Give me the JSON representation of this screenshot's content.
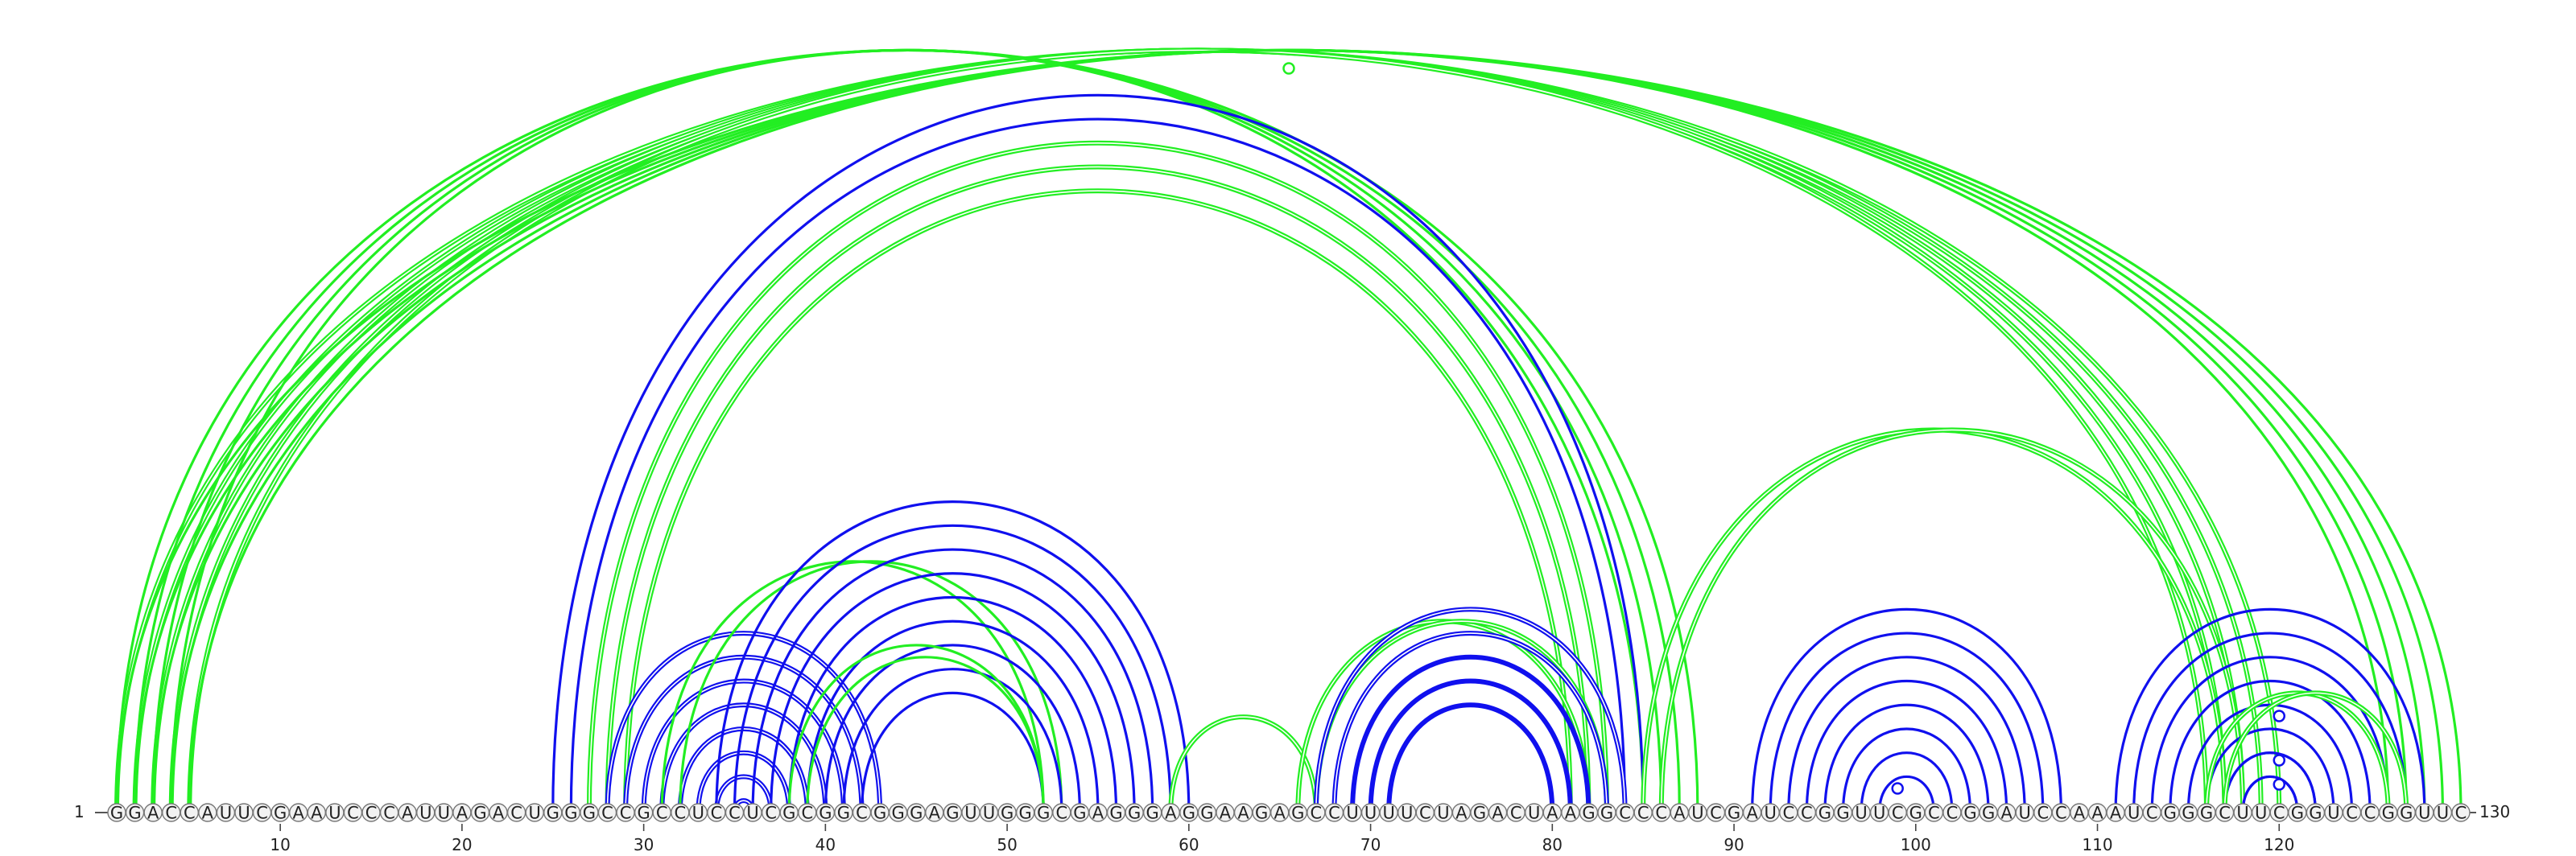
{
  "sequence": "GGACCAUUCGAAUCCCAUUAGACUGGGCCGCCUCCUCGCGGCGGGAGUUGGGCGAGGGAGGAAGAGCCUUUUCUAGACUAAGGCCCAUCGAUCCGGUUCGCCGGAUCCAAAUCGGGCUUCGGUCCGGUUC",
  "start_label": "1",
  "end_label": "130",
  "tick_labels": [
    "10",
    "20",
    "30",
    "40",
    "50",
    "60",
    "70",
    "80",
    "90",
    "100",
    "110",
    "120"
  ],
  "colors": {
    "green": "#22ee22",
    "blue": "#1010ee",
    "backbone": "#aaaaaa",
    "nucleotide_fill": "#f2f2f2",
    "nucleotide_stroke": "#777777"
  },
  "arc_groups": [
    {
      "color": "green",
      "weight": "double",
      "start": 1,
      "end": 120,
      "count": 5,
      "inner_step": 1,
      "outer_step": -1
    },
    {
      "color": "green",
      "weight": "single",
      "start": 126,
      "end": 130,
      "count": 5,
      "paired_from": 1
    },
    {
      "color": "green",
      "weight": "single",
      "start": 84,
      "end": 88,
      "count": 4,
      "paired_from": 1
    },
    {
      "color": "blue",
      "weight": "single",
      "start": 25,
      "end": 85,
      "count": 3,
      "inner_step": 1,
      "outer_step": -1
    },
    {
      "color": "green",
      "weight": "double",
      "start": 27,
      "end": 83,
      "count": 3,
      "inner_step": 1,
      "outer_step": -1
    },
    {
      "color": "blue",
      "weight": "double",
      "start": 28,
      "end": 43,
      "count": 8,
      "inner_step": 1,
      "outer_step": -1
    },
    {
      "color": "green",
      "weight": "single",
      "start": 31,
      "end": 52,
      "count": 2,
      "inner_step": 1,
      "outer_step": 1
    },
    {
      "color": "blue",
      "weight": "single",
      "start": 34,
      "end": 60,
      "count": 9,
      "inner_step": 1,
      "outer_step": -1
    },
    {
      "color": "green",
      "weight": "single",
      "start": 38,
      "end": 52,
      "count": 2,
      "inner_step": 1,
      "outer_step": 0
    },
    {
      "color": "green",
      "weight": "double",
      "start": 59,
      "end": 67,
      "count": 1,
      "inner_step": 1,
      "outer_step": -1
    },
    {
      "color": "green",
      "weight": "double",
      "start": 66,
      "end": 82,
      "count": 2,
      "inner_step": 1,
      "outer_step": 1
    },
    {
      "color": "blue",
      "weight": "double",
      "start": 67,
      "end": 84,
      "count": 5,
      "inner_step": 1,
      "outer_step": -1
    },
    {
      "color": "blue",
      "weight": "single",
      "start": 69,
      "end": 82,
      "count": 3,
      "inner_step": 1,
      "outer_step": -1
    },
    {
      "color": "green",
      "weight": "double",
      "start": 85,
      "end": 117,
      "count": 2,
      "inner_step": 1,
      "outer_step": 1
    },
    {
      "color": "blue",
      "weight": "single",
      "start": 91,
      "end": 108,
      "count": 8,
      "inner_step": 1,
      "outer_step": -1
    },
    {
      "color": "blue",
      "weight": "single",
      "start": 111,
      "end": 128,
      "count": 8,
      "inner_step": 1,
      "outer_step": -1
    },
    {
      "color": "blue",
      "weight": "single",
      "start": 117,
      "end": 122,
      "count": 2,
      "inner_step": 1,
      "outer_step": -1
    },
    {
      "color": "green",
      "weight": "double",
      "start": 116,
      "end": 126,
      "count": 2,
      "inner_step": 1,
      "outer_step": 1
    }
  ],
  "loop_markers": [
    {
      "color": "green",
      "position": 65.5,
      "height_fraction": 0.925
    },
    {
      "color": "blue",
      "position": 120,
      "height_fraction": 0.12
    },
    {
      "color": "blue",
      "position": 120,
      "height_fraction": 0.065
    },
    {
      "color": "blue",
      "position": 120,
      "height_fraction": 0.035
    },
    {
      "color": "blue",
      "position": 99,
      "height_fraction": 0.03
    }
  ]
}
